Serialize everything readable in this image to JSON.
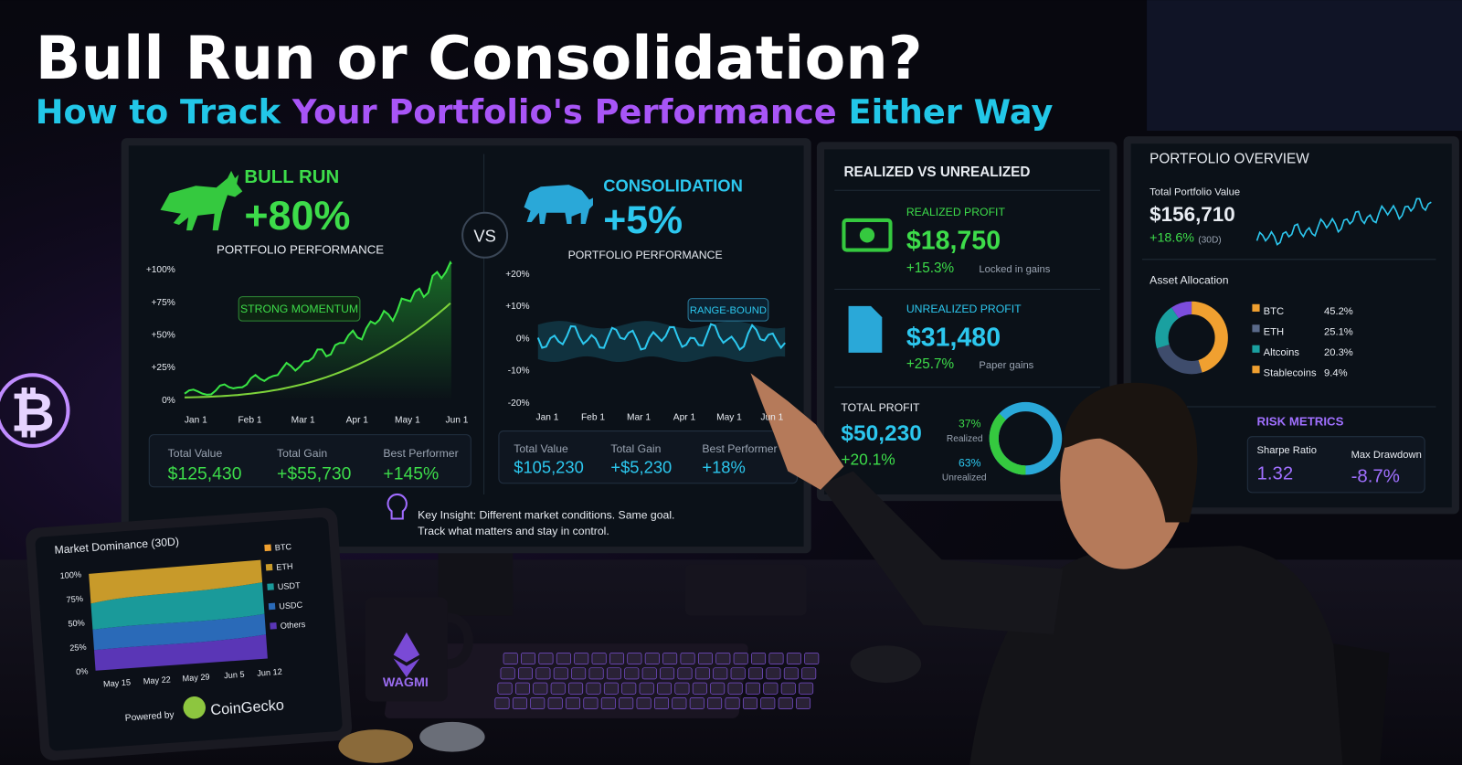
{
  "header": {
    "title": "Bull Run or Consolidation?",
    "subtitle": [
      "How to Track",
      "Your Portfolio's Performance",
      "Either Way"
    ]
  },
  "main_monitor": {
    "bull": {
      "label": "BULL RUN",
      "change": "+80%",
      "caption": "PORTFOLIO PERFORMANCE",
      "yticks": [
        "+100%",
        "+75%",
        "+50%",
        "+25%",
        "0%"
      ],
      "xticks": [
        "Jan 1",
        "Feb 1",
        "Mar 1",
        "Apr 1",
        "May 1",
        "Jun 1"
      ],
      "annotation": "STRONG MOMENTUM",
      "stats": [
        {
          "label": "Total Value",
          "value": "$125,430"
        },
        {
          "label": "Total Gain",
          "value": "+$55,730"
        },
        {
          "label": "Best Performer",
          "value": "+145%"
        }
      ]
    },
    "vs": "VS",
    "consolidation": {
      "label": "CONSOLIDATION",
      "change": "+5%",
      "caption": "PORTFOLIO PERFORMANCE",
      "yticks": [
        "+20%",
        "+10%",
        "0%",
        "-10%",
        "-20%"
      ],
      "xticks": [
        "Jan 1",
        "Feb 1",
        "Mar 1",
        "Apr 1",
        "May 1",
        "Jun 1"
      ],
      "annotation": "RANGE-BOUND",
      "stats": [
        {
          "label": "Total Value",
          "value": "$105,230"
        },
        {
          "label": "Total Gain",
          "value": "+$5,230"
        },
        {
          "label": "Best Performer",
          "value": "+18%"
        }
      ]
    },
    "insight": [
      "Key Insight: Different market conditions. Same goal.",
      "Track what matters and stay in control."
    ]
  },
  "realized_monitor": {
    "title": "REALIZED VS UNREALIZED",
    "realized": {
      "label": "REALIZED PROFIT",
      "value": "$18,750",
      "change": "+15.3%",
      "note": "Locked in gains"
    },
    "unrealized": {
      "label": "UNREALIZED PROFIT",
      "value": "$31,480",
      "change": "+25.7%",
      "note": "Paper gains"
    },
    "total": {
      "label": "TOTAL PROFIT",
      "value": "$50,230",
      "change": "+20.1%",
      "split": [
        {
          "pct": "37%",
          "label": "Realized"
        },
        {
          "pct": "63%",
          "label": "Unrealized"
        }
      ]
    }
  },
  "overview_monitor": {
    "title": "PORTFOLIO OVERVIEW",
    "total_label": "Total Portfolio Value",
    "total_value": "$156,710",
    "change": "+18.6%",
    "period": "(30D)",
    "allocation_title": "Asset Allocation",
    "allocation": [
      {
        "name": "BTC",
        "pct": "45.2%"
      },
      {
        "name": "ETH",
        "pct": "25.1%"
      },
      {
        "name": "Altcoins",
        "pct": "20.3%"
      },
      {
        "name": "Stablecoins",
        "pct": "9.4%"
      }
    ],
    "risk_title": "RISK METRICS",
    "risk": [
      {
        "label": "Sharpe Ratio",
        "value": "1.32"
      },
      {
        "label": "Max Drawdown",
        "value": "-8.7%"
      }
    ]
  },
  "tablet": {
    "title": "Market Dominance (30D)",
    "yticks": [
      "100%",
      "75%",
      "50%",
      "25%",
      "0%"
    ],
    "xticks": [
      "May 15",
      "May 22",
      "May 29",
      "Jun 5",
      "Jun 12"
    ],
    "legend": [
      "BTC",
      "ETH",
      "USDT",
      "USDC",
      "Others"
    ],
    "powered_by": "Powered by",
    "brand": "CoinGecko"
  },
  "mug": "WAGMI"
}
